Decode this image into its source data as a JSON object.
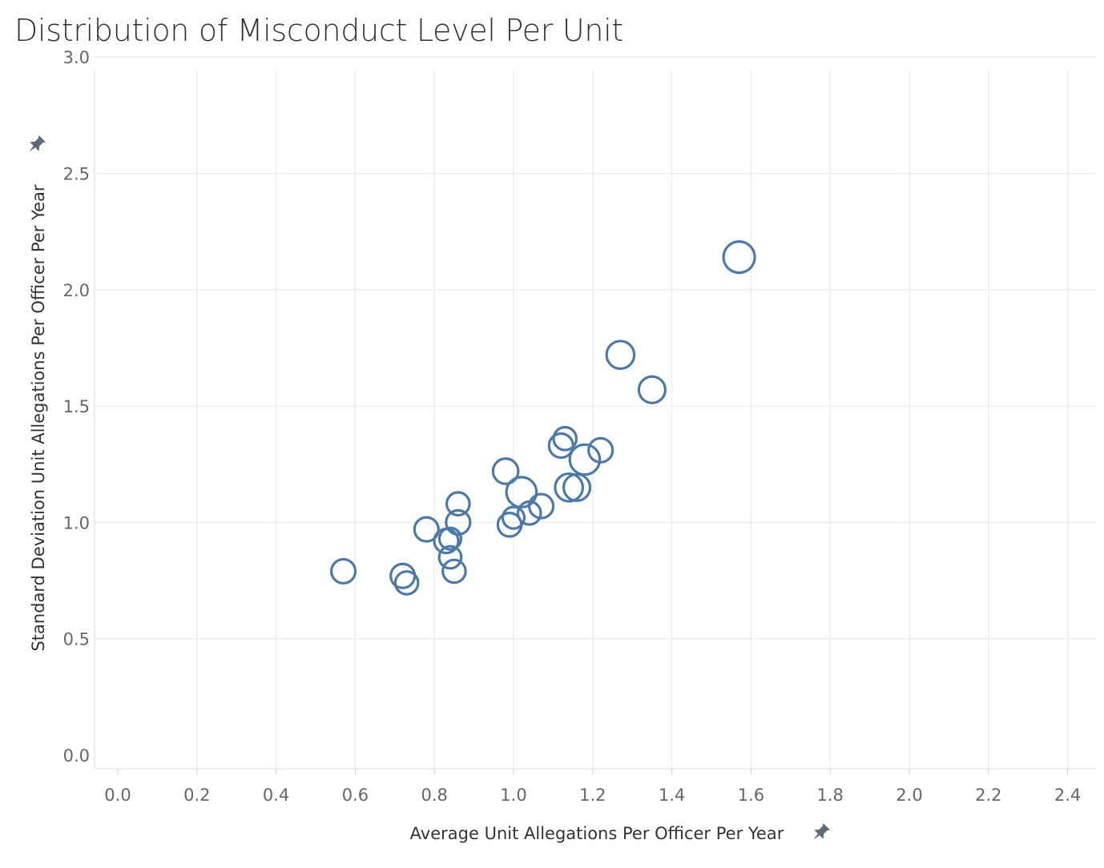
{
  "chart_data": {
    "type": "scatter",
    "title": "Distribution of Misconduct Level Per Unit",
    "xlabel": "Average Unit Allegations Per Officer Per Year",
    "ylabel": "Standard Deviation Unit Allegations Per Officer Per Year",
    "xlim": [
      -0.05,
      2.5
    ],
    "ylim": [
      -0.06,
      3.05
    ],
    "xticks": [
      "0.0",
      "0.2",
      "0.4",
      "0.6",
      "0.8",
      "1.0",
      "1.2",
      "1.4",
      "1.6",
      "1.8",
      "2.0",
      "2.2",
      "2.4"
    ],
    "yticks": [
      "0.0",
      "0.5",
      "1.0",
      "1.5",
      "2.0",
      "2.5",
      "3.0"
    ],
    "grid": true,
    "marker": "hollow-circle",
    "color": "#4e79a7",
    "points": [
      {
        "x": 0.57,
        "y": 0.79,
        "size": 1.0
      },
      {
        "x": 0.72,
        "y": 0.77,
        "size": 1.0
      },
      {
        "x": 0.73,
        "y": 0.74,
        "size": 0.95
      },
      {
        "x": 0.78,
        "y": 0.97,
        "size": 1.0
      },
      {
        "x": 0.83,
        "y": 0.92,
        "size": 1.0
      },
      {
        "x": 0.84,
        "y": 0.93,
        "size": 0.9
      },
      {
        "x": 0.84,
        "y": 0.85,
        "size": 0.92
      },
      {
        "x": 0.85,
        "y": 0.79,
        "size": 0.95
      },
      {
        "x": 0.86,
        "y": 1.08,
        "size": 0.95
      },
      {
        "x": 0.86,
        "y": 1.0,
        "size": 1.0
      },
      {
        "x": 0.98,
        "y": 1.22,
        "size": 1.05
      },
      {
        "x": 0.99,
        "y": 0.99,
        "size": 0.98
      },
      {
        "x": 1.0,
        "y": 1.02,
        "size": 0.9
      },
      {
        "x": 1.02,
        "y": 1.13,
        "size": 1.25
      },
      {
        "x": 1.04,
        "y": 1.04,
        "size": 0.95
      },
      {
        "x": 1.07,
        "y": 1.07,
        "size": 1.0
      },
      {
        "x": 1.12,
        "y": 1.33,
        "size": 1.0
      },
      {
        "x": 1.13,
        "y": 1.36,
        "size": 0.95
      },
      {
        "x": 1.14,
        "y": 1.15,
        "size": 1.15
      },
      {
        "x": 1.16,
        "y": 1.15,
        "size": 1.1
      },
      {
        "x": 1.18,
        "y": 1.27,
        "size": 1.25
      },
      {
        "x": 1.22,
        "y": 1.31,
        "size": 1.0
      },
      {
        "x": 1.27,
        "y": 1.72,
        "size": 1.15
      },
      {
        "x": 1.35,
        "y": 1.57,
        "size": 1.1
      },
      {
        "x": 1.57,
        "y": 2.14,
        "size": 1.3
      }
    ]
  }
}
